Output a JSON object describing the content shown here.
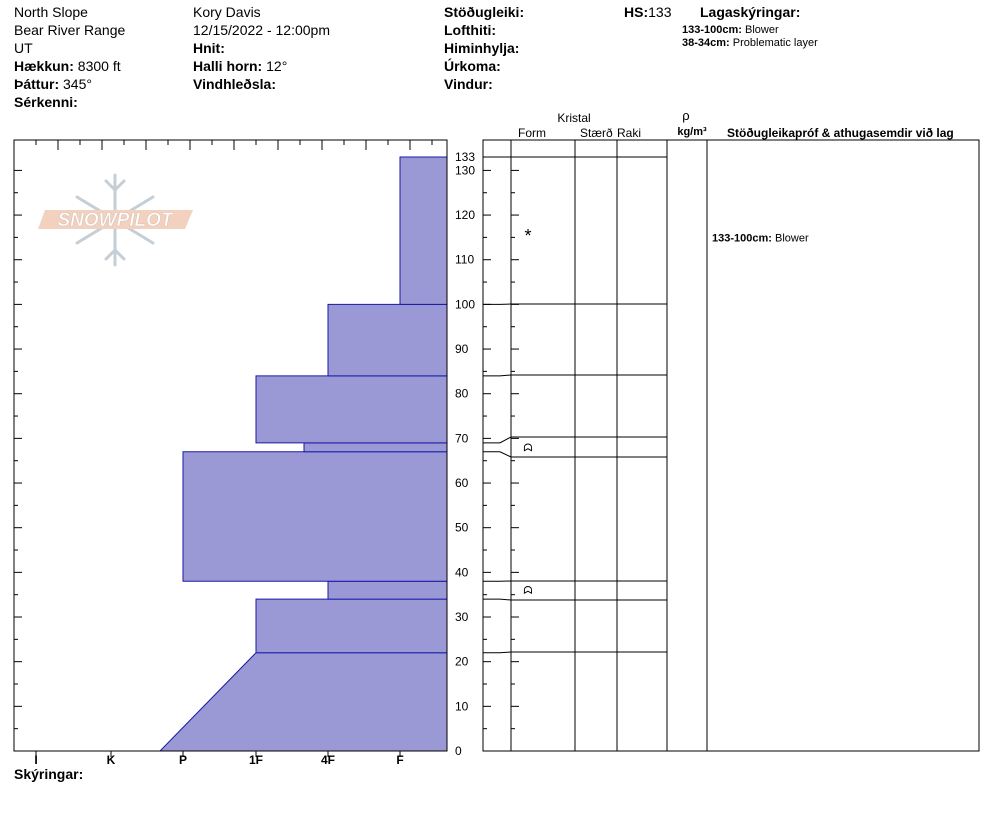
{
  "header": {
    "col1": [
      "North Slope",
      "Bear River Range",
      "UT"
    ],
    "elevation_label": "Hækkun:",
    "elevation_value": "8300 ft",
    "aspect_label": "Þáttur:",
    "aspect_value": "345°",
    "features_label": "Sérkenni:",
    "observer": "Kory Davis",
    "datetime": "12/15/2022 - 12:00pm",
    "coords_label": "Hnit:",
    "slope_label": "Halli horn:",
    "slope_value": "12°",
    "wind_loading_label": "Vindhleðsla:",
    "stability_label": "Stöðugleiki:",
    "air_temp_label": "Lofthiti:",
    "sky_label": "Himinhylja:",
    "precip_label": "Úrkoma:",
    "wind_label": "Vindur:",
    "hs_label": "HS:",
    "hs_value": "133",
    "layer_notes_title": "Lagaskýringar:",
    "layer_notes": [
      {
        "range": "133-100cm:",
        "text": "Blower"
      },
      {
        "range": "38-34cm:",
        "text": "Problematic layer"
      }
    ]
  },
  "table_headers": {
    "crystal": "Kristal",
    "form": "Form",
    "size": "Stærð",
    "moisture": "Raki",
    "rho": "ρ",
    "density_unit": "kg/m³",
    "stability_tests": "Stöðugleikapróf & athugasemdir við lag"
  },
  "row_notes": [
    {
      "depth": 115,
      "range": "133-100cm:",
      "text": "Blower"
    }
  ],
  "logo_text": "SNOWPILOT",
  "footer": {
    "notes_label": "Skýringar:"
  },
  "colors": {
    "fill": "#9b99d5",
    "stroke": "#1a1aa6"
  },
  "chart_data": {
    "type": "area",
    "title": "",
    "ylabel": "",
    "xlabel": "",
    "ylim": [
      0,
      133
    ],
    "y_ticks": [
      "0",
      "10",
      "20",
      "30",
      "40",
      "50",
      "60",
      "70",
      "80",
      "90",
      "100",
      "110",
      "120",
      "130",
      "133"
    ],
    "x_categories": [
      "I",
      "K",
      "P",
      "1F",
      "4F",
      "F"
    ],
    "hardness_profile": [
      {
        "top": 22,
        "bottom": 0,
        "hardness_bottom": "P-",
        "hardness_top": "1F"
      },
      {
        "top": 34,
        "bottom": 22,
        "hardness": "1F"
      },
      {
        "top": 38,
        "bottom": 34,
        "hardness": "4F"
      },
      {
        "top": 67,
        "bottom": 38,
        "hardness": "P"
      },
      {
        "top": 69,
        "bottom": 67,
        "hardness": "4F+"
      },
      {
        "top": 84,
        "bottom": 69,
        "hardness": "1F"
      },
      {
        "top": 100,
        "bottom": 84,
        "hardness": "4F"
      },
      {
        "top": 133,
        "bottom": 100,
        "hardness": "F"
      }
    ],
    "layer_boundaries": [
      133,
      100,
      84,
      69,
      67,
      38,
      34,
      22
    ],
    "grain_symbols": [
      {
        "depth": 116,
        "symbol": "*"
      },
      {
        "depth": 68,
        "symbol": "ᗣ"
      },
      {
        "depth": 36,
        "symbol": "ᗣ"
      }
    ]
  }
}
